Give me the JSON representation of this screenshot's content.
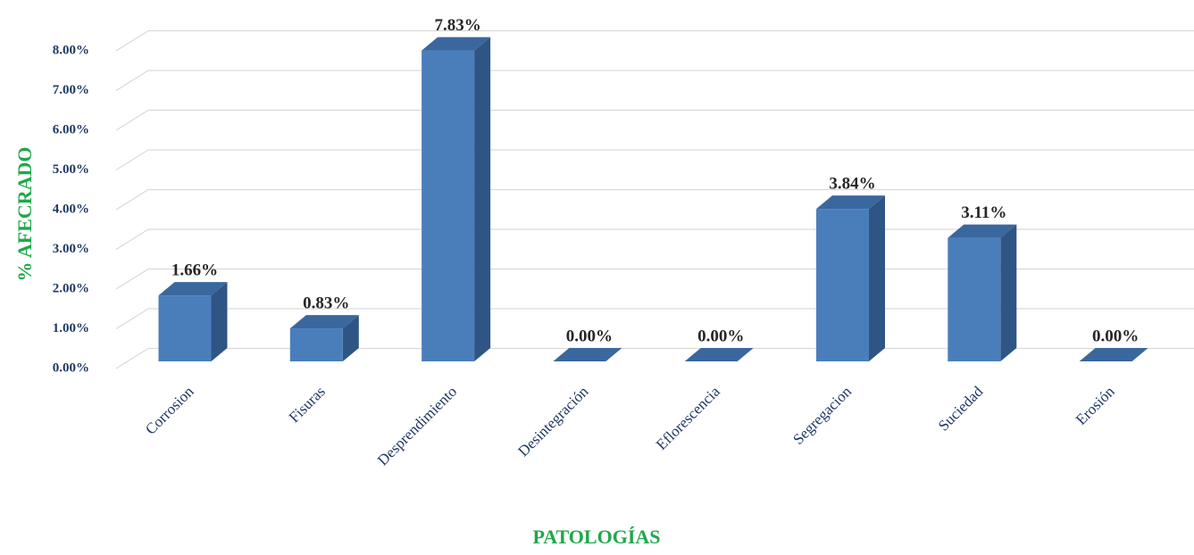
{
  "chart_data": {
    "type": "bar3d",
    "x_label": "PATOLOGÍAS",
    "y_label": "% AFECRADO",
    "categories": [
      "Corrosion",
      "Fisuras",
      "Desprendimiento",
      "Desintegración",
      "Eflorescencia",
      "Segregacion",
      "Suciedad",
      "Erosión"
    ],
    "values": [
      1.66,
      0.83,
      7.83,
      0,
      0,
      3.84,
      3.11,
      0
    ],
    "value_labels": [
      "1.66%",
      "0.83%",
      "7.83%",
      "0.00%",
      "0.00%",
      "3.84%",
      "3.11%",
      "0.00%"
    ],
    "color": "#4a7ebb",
    "ylim": [
      0,
      8
    ],
    "yticks": [
      {
        "value": 0,
        "label": "0.00%"
      },
      {
        "value": 1,
        "label": "1.00%"
      },
      {
        "value": 2,
        "label": "2.00%"
      },
      {
        "value": 3,
        "label": "3.00%"
      },
      {
        "value": 4,
        "label": "4.00%"
      },
      {
        "value": 5,
        "label": "5.00%"
      },
      {
        "value": 6,
        "label": "6.00%"
      },
      {
        "value": 7,
        "label": "7.00%"
      },
      {
        "value": 8,
        "label": "8.00%"
      }
    ],
    "grid": true
  }
}
